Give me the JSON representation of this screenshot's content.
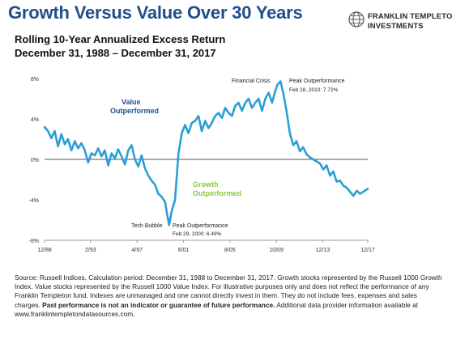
{
  "header": {
    "title": "Growth Versus Value Over 30 Years",
    "subtitle_line1": "Rolling 10-Year Annualized Excess Return",
    "subtitle_line2": "December 31, 1988 – December 31, 2017"
  },
  "logo": {
    "line1": "FRANKLIN TEMPLETON",
    "line2": "INVESTMENTS",
    "icon": "globe-logo-icon"
  },
  "chart_data": {
    "type": "line",
    "ylim": [
      -8,
      8
    ],
    "y_ticks": [
      "8%",
      "4%",
      "0%",
      "-4%",
      "-8%"
    ],
    "y_tick_values": [
      8,
      4,
      0,
      -4,
      -8
    ],
    "x_ticks": [
      "12/88",
      "2/93",
      "4/97",
      "6/01",
      "8/05",
      "10/09",
      "12/13",
      "12/17"
    ],
    "x_tick_positions": [
      1988.99,
      1993.12,
      1997.29,
      2001.46,
      2005.62,
      2009.79,
      2013.96,
      2017.99
    ],
    "xlim": [
      1988.99,
      2017.99
    ],
    "grid": false,
    "zero_line": true,
    "series_color": "#2b9fd4",
    "annotations": {
      "value_outperformed": "Value Outperformed",
      "growth_outperformed": "Growth Outperformed",
      "tech_bubble": "Tech Bubble",
      "financial_crisis": "Financial Crisis",
      "peak_low_title": "Peak Outperformance",
      "peak_low_date": "Feb 29, 2000: 6.49%",
      "peak_high_title": "Peak Outperformance",
      "peak_high_date": "Feb 28, 2010: 7.72%"
    },
    "series": [
      {
        "x": [
          1988.99,
          1989.3,
          1989.6,
          1989.9,
          1990.2,
          1990.5,
          1990.8,
          1991.1,
          1991.4,
          1991.7,
          1992.0,
          1992.3,
          1992.6,
          1992.9,
          1993.2,
          1993.5,
          1993.8,
          1994.1,
          1994.4,
          1994.7,
          1995.0,
          1995.3,
          1995.6,
          1995.9,
          1996.2,
          1996.5,
          1996.8,
          1997.1,
          1997.4,
          1997.7,
          1998.0,
          1998.3,
          1998.6,
          1998.9,
          1999.2,
          1999.5,
          1999.8,
          2000.16,
          2000.4,
          2000.7,
          2001.0,
          2001.3,
          2001.6,
          2001.9,
          2002.2,
          2002.5,
          2002.8,
          2003.1,
          2003.4,
          2003.7,
          2004.0,
          2004.3,
          2004.6,
          2004.9,
          2005.2,
          2005.5,
          2005.8,
          2006.1,
          2006.4,
          2006.7,
          2007.0,
          2007.3,
          2007.6,
          2007.9,
          2008.2,
          2008.5,
          2008.8,
          2009.1,
          2009.4,
          2009.7,
          2009.9,
          2010.16,
          2010.4,
          2010.7,
          2011.0,
          2011.3,
          2011.6,
          2011.9,
          2012.2,
          2012.5,
          2012.8,
          2013.1,
          2013.4,
          2013.7,
          2014.0,
          2014.3,
          2014.6,
          2014.9,
          2015.2,
          2015.5,
          2015.8,
          2016.1,
          2016.4,
          2016.7,
          2017.0,
          2017.3,
          2017.6,
          2017.99
        ],
        "y": [
          3.2,
          2.8,
          2.1,
          2.8,
          1.3,
          2.5,
          1.5,
          2.0,
          0.9,
          1.8,
          1.1,
          1.6,
          0.9,
          -0.3,
          0.6,
          0.4,
          1.1,
          0.3,
          0.9,
          -0.6,
          0.6,
          0.1,
          1.0,
          0.3,
          -0.5,
          0.9,
          1.4,
          0.0,
          -0.7,
          0.4,
          -0.9,
          -1.6,
          -2.1,
          -2.5,
          -3.4,
          -3.7,
          -4.2,
          -6.49,
          -5.1,
          -4.0,
          0.5,
          2.6,
          3.4,
          2.6,
          3.6,
          3.8,
          4.3,
          2.8,
          3.8,
          3.1,
          3.6,
          4.3,
          4.6,
          4.1,
          5.1,
          4.6,
          4.3,
          5.3,
          5.6,
          4.8,
          5.6,
          6.0,
          5.1,
          5.6,
          6.0,
          4.8,
          6.0,
          6.6,
          5.6,
          6.8,
          7.4,
          7.72,
          6.6,
          4.8,
          2.6,
          1.4,
          1.8,
          0.8,
          1.2,
          0.5,
          0.2,
          0.0,
          -0.2,
          -0.4,
          -1.0,
          -0.6,
          -1.6,
          -1.2,
          -2.2,
          -2.1,
          -2.6,
          -2.8,
          -3.2,
          -3.6,
          -3.1,
          -3.4,
          -3.2,
          -2.9
        ]
      }
    ]
  },
  "source": {
    "text": "Source: Russell Indices. Calculation period: December 31, 1988 to December 31, 2017. Growth stocks represented by the Russell 1000 Growth Index. Value stocks represented by the Russell 1000 Value Index. For illustrative purposes only and does not reflect the performance of any Franklin Templeton fund. Indexes are unmanaged and one cannot directly invest in them. They do not include fees, expenses and sales charges. ",
    "bold_text": "Past performance is not an indicator or guarantee of future performance.",
    "tail_text": " Additional data provider information available at www.franklintempletondatasources.com."
  }
}
